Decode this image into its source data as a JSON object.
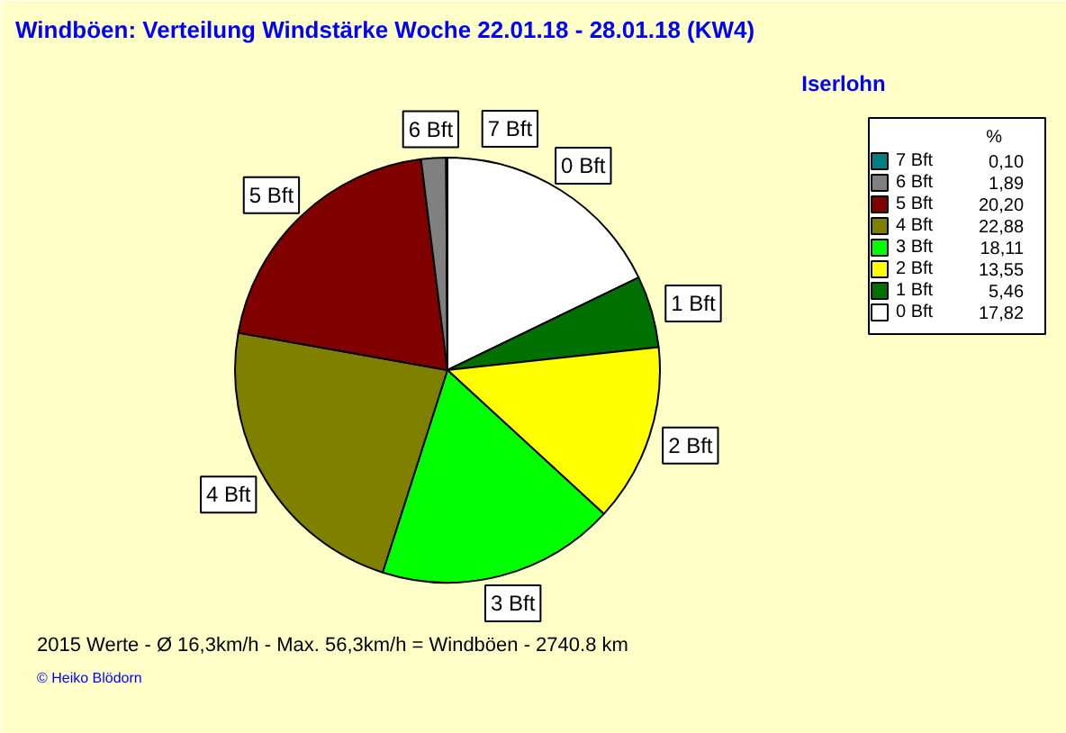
{
  "chart_data": {
    "type": "pie",
    "title": "Windböen: Verteilung Windstärke  Woche 22.01.18 - 28.01.18 (KW4)",
    "subtitle": "Iserlohn",
    "categories": [
      "0 Bft",
      "1 Bft",
      "2 Bft",
      "3 Bft",
      "4 Bft",
      "5 Bft",
      "6 Bft",
      "7 Bft"
    ],
    "values": [
      17.82,
      5.46,
      13.55,
      18.11,
      22.88,
      20.2,
      1.89,
      0.1
    ],
    "value_labels": [
      "17,82",
      "5,46",
      "13,55",
      "18,11",
      "22,88",
      "20,20",
      "1,89",
      "0,10"
    ],
    "colors": [
      "#ffffff",
      "#007000",
      "#ffff00",
      "#00ff00",
      "#808000",
      "#800000",
      "#808080",
      "#008080"
    ],
    "legend_title": "%",
    "legend": "right",
    "annotations": [
      "2015 Werte   -   Ø 16,3km/h  -  Max. 56,3km/h = Windböen   -   2740.8 km",
      "© Heiko Blödorn"
    ]
  }
}
